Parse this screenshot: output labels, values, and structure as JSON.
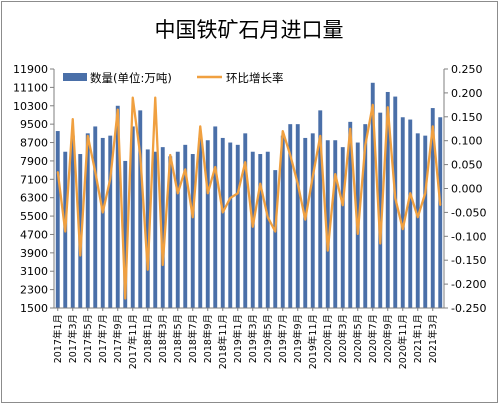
{
  "chart_data": {
    "type": "bar",
    "title": "中国铁矿石月进口量",
    "legend_placement": "top-left",
    "grid": false,
    "y_left": {
      "ylim": [
        1500,
        11900
      ],
      "ticks": [
        "11900",
        "11100",
        "10300",
        "9500",
        "8700",
        "7900",
        "7100",
        "6300",
        "5500",
        "4700",
        "3900",
        "3100",
        "2300",
        "1500"
      ]
    },
    "y_right": {
      "ylim": [
        -0.25,
        0.25
      ],
      "ticks": [
        "0.250",
        "0.200",
        "0.150",
        "0.100",
        "0.050",
        "0.000",
        "-0.050",
        "-0.100",
        "-0.150",
        "-0.200",
        "-0.250"
      ]
    },
    "x_tick_labels": [
      "2017年1月",
      "2017年3月",
      "2017年5月",
      "2017年7月",
      "2017年9月",
      "2017年11月",
      "2018年1月",
      "2018年3月",
      "2018年5月",
      "2018年7月",
      "2018年9月",
      "2018年11月",
      "2019年1月",
      "2019年3月",
      "2019年5月",
      "2019年7月",
      "2019年9月",
      "2019年11月",
      "2020年1月",
      "2020年3月",
      "2020年5月",
      "2020年7月",
      "2020年9月",
      "2020年11月",
      "2021年1月",
      "2021年3月"
    ],
    "months": [
      "2017-01",
      "2017-02",
      "2017-03",
      "2017-04",
      "2017-05",
      "2017-06",
      "2017-07",
      "2017-08",
      "2017-09",
      "2017-10",
      "2017-11",
      "2017-12",
      "2018-01",
      "2018-02",
      "2018-03",
      "2018-04",
      "2018-05",
      "2018-06",
      "2018-07",
      "2018-08",
      "2018-09",
      "2018-10",
      "2018-11",
      "2018-12",
      "2019-01",
      "2019-02",
      "2019-03",
      "2019-04",
      "2019-05",
      "2019-06",
      "2019-07",
      "2019-08",
      "2019-09",
      "2019-10",
      "2019-11",
      "2019-12",
      "2020-01",
      "2020-02",
      "2020-03",
      "2020-04",
      "2020-05",
      "2020-06",
      "2020-07",
      "2020-08",
      "2020-09",
      "2020-10",
      "2020-11",
      "2020-12",
      "2021-01",
      "2021-02",
      "2021-03",
      "2021-04"
    ],
    "series": [
      {
        "name": "数量(单位:万吨)",
        "type": "bar",
        "axis": "left",
        "color": "#4a6fa8",
        "values": [
          9200,
          8300,
          9000,
          8200,
          9100,
          9400,
          8900,
          9000,
          10300,
          7900,
          9400,
          10100,
          8400,
          8300,
          8500,
          8100,
          8300,
          8600,
          8200,
          8900,
          8800,
          9400,
          8900,
          8700,
          8600,
          9100,
          8300,
          8200,
          8300,
          7500,
          9000,
          9500,
          9500,
          8900,
          9100,
          10100,
          8800,
          8800,
          8500,
          9600,
          8700,
          9500,
          11300,
          10000,
          10900,
          10700,
          9800,
          9700,
          9100,
          9000,
          10200,
          9800
        ]
      },
      {
        "name": "环比增长率",
        "type": "line",
        "axis": "right",
        "color": "#f0a040",
        "values": [
          0.035,
          -0.09,
          0.145,
          -0.14,
          0.11,
          0.035,
          -0.05,
          0.02,
          0.165,
          -0.23,
          0.19,
          0.07,
          -0.17,
          0.19,
          -0.16,
          0.07,
          -0.01,
          0.04,
          -0.06,
          0.13,
          -0.01,
          0.045,
          -0.05,
          -0.02,
          -0.01,
          0.055,
          -0.08,
          0.01,
          -0.06,
          -0.09,
          0.12,
          0.07,
          0.01,
          -0.065,
          0.025,
          0.11,
          -0.13,
          0.03,
          -0.035,
          0.125,
          -0.095,
          0.09,
          0.175,
          -0.115,
          0.17,
          -0.02,
          -0.085,
          -0.01,
          -0.06,
          -0.01,
          0.13,
          -0.035
        ]
      }
    ]
  }
}
